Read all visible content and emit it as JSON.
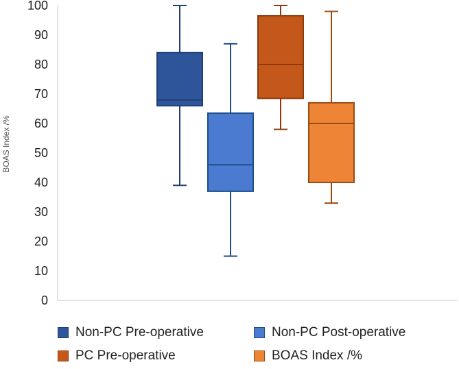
{
  "chart_data": {
    "type": "box",
    "title": "",
    "xlabel": "",
    "ylabel": "BOAS Index /%",
    "ylim": [
      0,
      100
    ],
    "yticks": [
      0,
      10,
      20,
      30,
      40,
      50,
      60,
      70,
      80,
      90,
      100
    ],
    "grid": false,
    "legend_position": "bottom",
    "series": [
      {
        "name": "Non-PC Pre-operative",
        "min": 39,
        "q1": 66,
        "median": 68,
        "q3": 84,
        "max": 100,
        "fill": "#2E5599",
        "stroke": "#1F3F78"
      },
      {
        "name": "Non-PC Post-operative",
        "min": 15,
        "q1": 37,
        "median": 46,
        "q3": 63.5,
        "max": 87,
        "fill": "#4A7BD0",
        "stroke": "#1F4E8C"
      },
      {
        "name": "PC Pre-operative",
        "min": 58,
        "q1": 68.5,
        "median": 80,
        "q3": 96.5,
        "max": 100,
        "fill": "#C4581A",
        "stroke": "#8E3A0C"
      },
      {
        "name": "BOAS Index /%",
        "min": 33,
        "q1": 40,
        "median": 60,
        "q3": 67,
        "max": 98,
        "fill": "#EE8436",
        "stroke": "#9B4A12"
      }
    ]
  }
}
